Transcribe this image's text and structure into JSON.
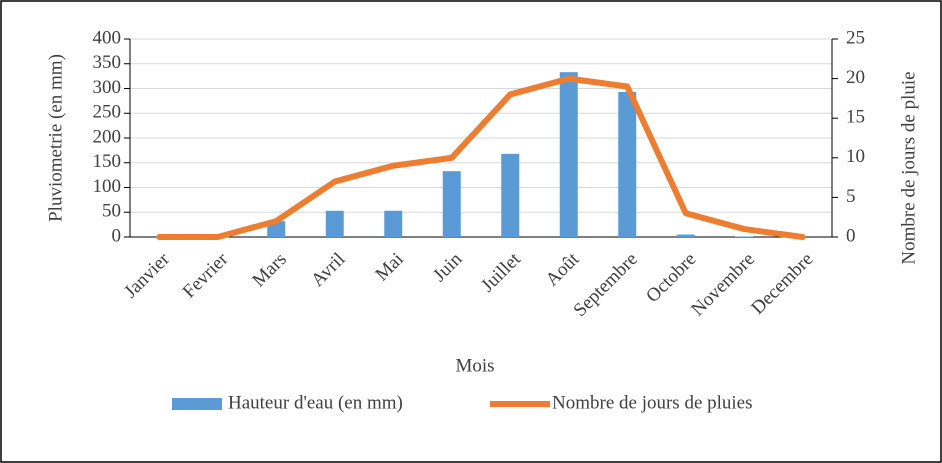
{
  "chart_data": {
    "type": "bar",
    "categories": [
      "Janvier",
      "Fevrier",
      "Mars",
      "Avril",
      "Mai",
      "Juin",
      "Juillet",
      "Août",
      "Septembre",
      "Octobre",
      "Novembre",
      "Decembre"
    ],
    "series": [
      {
        "name": "Hauteur d'eau (en mm)",
        "type": "bar",
        "color": "#5b9bd5",
        "axis": "y",
        "values": [
          0,
          0,
          32,
          53,
          53,
          133,
          168,
          333,
          293,
          5,
          1,
          0
        ]
      },
      {
        "name": "Nombre de jours de pluies",
        "type": "line",
        "color": "#ed7d31",
        "axis": "y2",
        "values": [
          0,
          0,
          2,
          7,
          9,
          10,
          18,
          20,
          19,
          3,
          1,
          0
        ]
      }
    ],
    "xlabel": "Mois",
    "ylabel": "Pluviometrie (en mm)",
    "y2label": "Nombre de jours de pluie",
    "ylim": [
      0,
      400
    ],
    "yticks": [
      0,
      50,
      100,
      150,
      200,
      250,
      300,
      350,
      400
    ],
    "y2lim": [
      0,
      25
    ],
    "y2ticks": [
      0,
      5,
      10,
      15,
      20,
      25
    ],
    "grid": true,
    "legend": "bottom"
  }
}
